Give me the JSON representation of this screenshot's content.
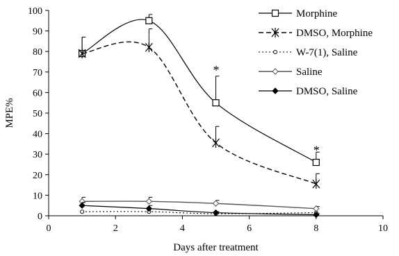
{
  "chart_data": {
    "type": "line",
    "title": "",
    "xlabel": "Days after treatment",
    "ylabel": "MPE%",
    "xlim": [
      0,
      10
    ],
    "ylim": [
      0,
      100
    ],
    "xticks": [
      0,
      2,
      4,
      6,
      8,
      10
    ],
    "yticks": [
      0,
      10,
      20,
      30,
      40,
      50,
      60,
      70,
      80,
      90,
      100
    ],
    "grid": false,
    "legend_position": "top-right",
    "series": [
      {
        "name": "Morphine",
        "x": [
          1,
          3,
          5,
          8
        ],
        "y": [
          79,
          95,
          55,
          26
        ],
        "error": [
          8,
          3,
          13,
          5
        ],
        "marker": "open-square",
        "line": "solid",
        "color": "#000000"
      },
      {
        "name": "DMSO, Morphine",
        "x": [
          1,
          3,
          5,
          8
        ],
        "y": [
          79,
          82,
          35.5,
          15.5
        ],
        "error": [
          8,
          9,
          8,
          5
        ],
        "marker": "asterisk",
        "line": "dashed",
        "color": "#000000"
      },
      {
        "name": "W-7(1), Saline",
        "x": [
          1,
          3,
          5,
          8
        ],
        "y": [
          2,
          2,
          1,
          1.5
        ],
        "error": [
          0,
          0,
          0,
          0
        ],
        "marker": "small-open-circle",
        "line": "dotted",
        "color": "#000000"
      },
      {
        "name": "Saline",
        "x": [
          1,
          3,
          5,
          8
        ],
        "y": [
          7,
          7,
          6,
          3.5
        ],
        "error": [
          2,
          2,
          1.5,
          1
        ],
        "marker": "open-diamond",
        "line": "solid-gray",
        "color": "#555555"
      },
      {
        "name": "DMSO, Saline",
        "x": [
          1,
          3,
          5,
          8
        ],
        "y": [
          5,
          3.5,
          1.5,
          0.5
        ],
        "error": [
          1.5,
          1.5,
          0.5,
          0.5
        ],
        "marker": "filled-diamond",
        "line": "solid",
        "color": "#000000"
      }
    ],
    "annotations": [
      {
        "text": "*",
        "x": 5,
        "y": 71
      },
      {
        "text": "*",
        "x": 8,
        "y": 32
      }
    ]
  }
}
